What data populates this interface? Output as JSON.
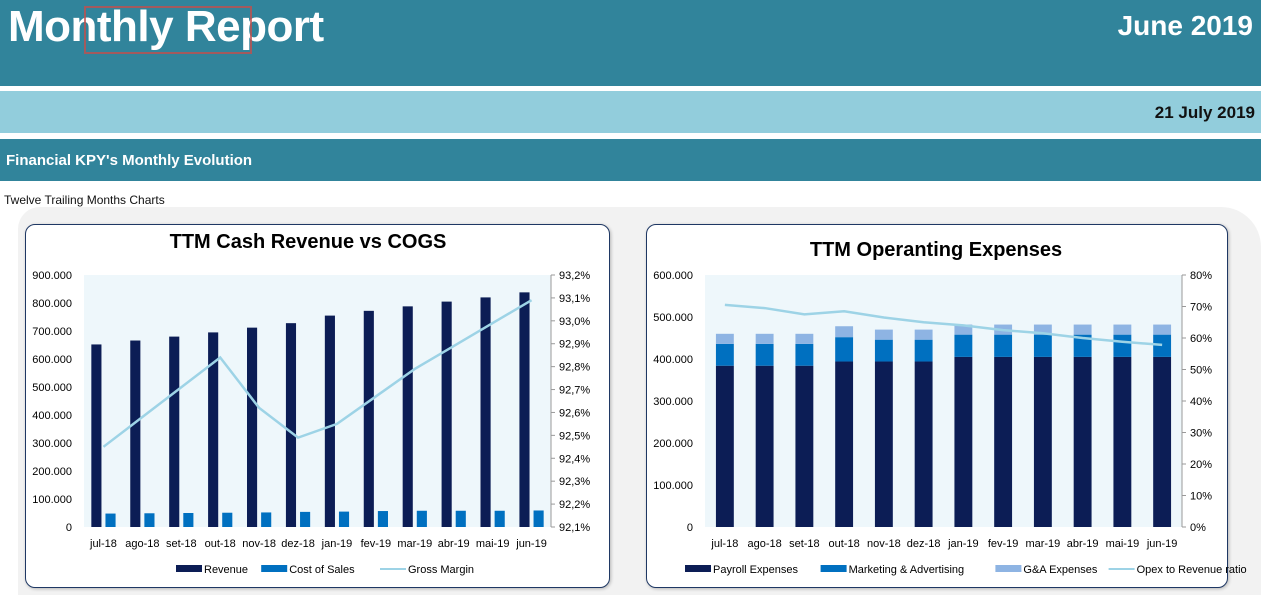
{
  "header": {
    "title": "Monthly Report",
    "month": "June 2019",
    "date": "21 July 2019",
    "section": "Financial KPY's Monthly Evolution",
    "subtitle": "Twelve Trailing Months Charts"
  },
  "colors": {
    "header_dark": "#31849b",
    "header_light": "#92cddc",
    "navy": "#0c1d55",
    "blue": "#0070c0",
    "light_blue": "#8eb4e3",
    "line": "#9dd3e6",
    "plot_bg": "#eef7fb"
  },
  "chart_data": [
    {
      "type": "bar",
      "title": "TTM Cash Revenue vs COGS",
      "categories": [
        "jul-18",
        "ago-18",
        "set-18",
        "out-18",
        "nov-18",
        "dez-18",
        "jan-19",
        "fev-19",
        "mar-19",
        "abr-19",
        "mai-19",
        "jun-19"
      ],
      "series": [
        {
          "name": "Revenue",
          "kind": "bar",
          "axis": "left",
          "color": "#0c1d55",
          "values": [
            652000,
            666000,
            680000,
            695000,
            712000,
            728000,
            755000,
            772000,
            788000,
            805000,
            820000,
            838000
          ]
        },
        {
          "name": "Cost of Sales",
          "kind": "bar",
          "axis": "left",
          "color": "#0070c0",
          "values": [
            48000,
            49000,
            50000,
            51000,
            52000,
            54000,
            55000,
            57000,
            58000,
            58000,
            58000,
            59000
          ]
        },
        {
          "name": "Gross Margin",
          "kind": "line",
          "axis": "right",
          "color": "#9dd3e6",
          "values": [
            92.45,
            92.58,
            92.71,
            92.84,
            92.62,
            92.49,
            92.55,
            92.67,
            92.79,
            92.89,
            92.99,
            93.09
          ]
        }
      ],
      "ylim": [
        0,
        900000
      ],
      "y_ticks": [
        "0",
        "100.000",
        "200.000",
        "300.000",
        "400.000",
        "500.000",
        "600.000",
        "700.000",
        "800.000",
        "900.000"
      ],
      "y2lim": [
        92.1,
        93.2
      ],
      "y2_ticks": [
        "92,1%",
        "92,2%",
        "92,3%",
        "92,4%",
        "92,5%",
        "92,6%",
        "92,7%",
        "92,8%",
        "92,9%",
        "93,0%",
        "93,1%",
        "93,2%"
      ],
      "legend_position": "bottom"
    },
    {
      "type": "bar",
      "stacked": true,
      "title": "TTM Operanting Expenses",
      "categories": [
        "jul-18",
        "ago-18",
        "set-18",
        "out-18",
        "nov-18",
        "dez-18",
        "jan-19",
        "fev-19",
        "mar-19",
        "abr-19",
        "mai-19",
        "jun-19"
      ],
      "series": [
        {
          "name": "Payroll Expenses",
          "kind": "bar",
          "axis": "left",
          "color": "#0c1d55",
          "values": [
            384000,
            384000,
            384000,
            394000,
            394000,
            394000,
            405000,
            405000,
            405000,
            405000,
            405000,
            405000
          ]
        },
        {
          "name": "Marketing & Advertising",
          "kind": "bar",
          "axis": "left",
          "color": "#0070c0",
          "values": [
            52000,
            52000,
            52000,
            58000,
            52000,
            52000,
            53000,
            53000,
            53000,
            53000,
            53000,
            53000
          ]
        },
        {
          "name": "G&A Expenses",
          "kind": "bar",
          "axis": "left",
          "color": "#8eb4e3",
          "values": [
            24000,
            24000,
            24000,
            26000,
            24000,
            24000,
            24000,
            24000,
            24000,
            24000,
            24000,
            24000
          ]
        },
        {
          "name": "Opex to Revenue ratio",
          "kind": "line",
          "axis": "right",
          "color": "#9dd3e6",
          "values": [
            70.5,
            69.5,
            67.5,
            68.5,
            66.5,
            65,
            64,
            62.5,
            61.5,
            60,
            58.8,
            57.8
          ]
        }
      ],
      "ylim": [
        0,
        600000
      ],
      "y_ticks": [
        "0",
        "100.000",
        "200.000",
        "300.000",
        "400.000",
        "500.000",
        "600.000"
      ],
      "y2lim": [
        0,
        80
      ],
      "y2_ticks": [
        "0%",
        "10%",
        "20%",
        "30%",
        "40%",
        "50%",
        "60%",
        "70%",
        "80%"
      ],
      "legend_position": "bottom"
    }
  ]
}
